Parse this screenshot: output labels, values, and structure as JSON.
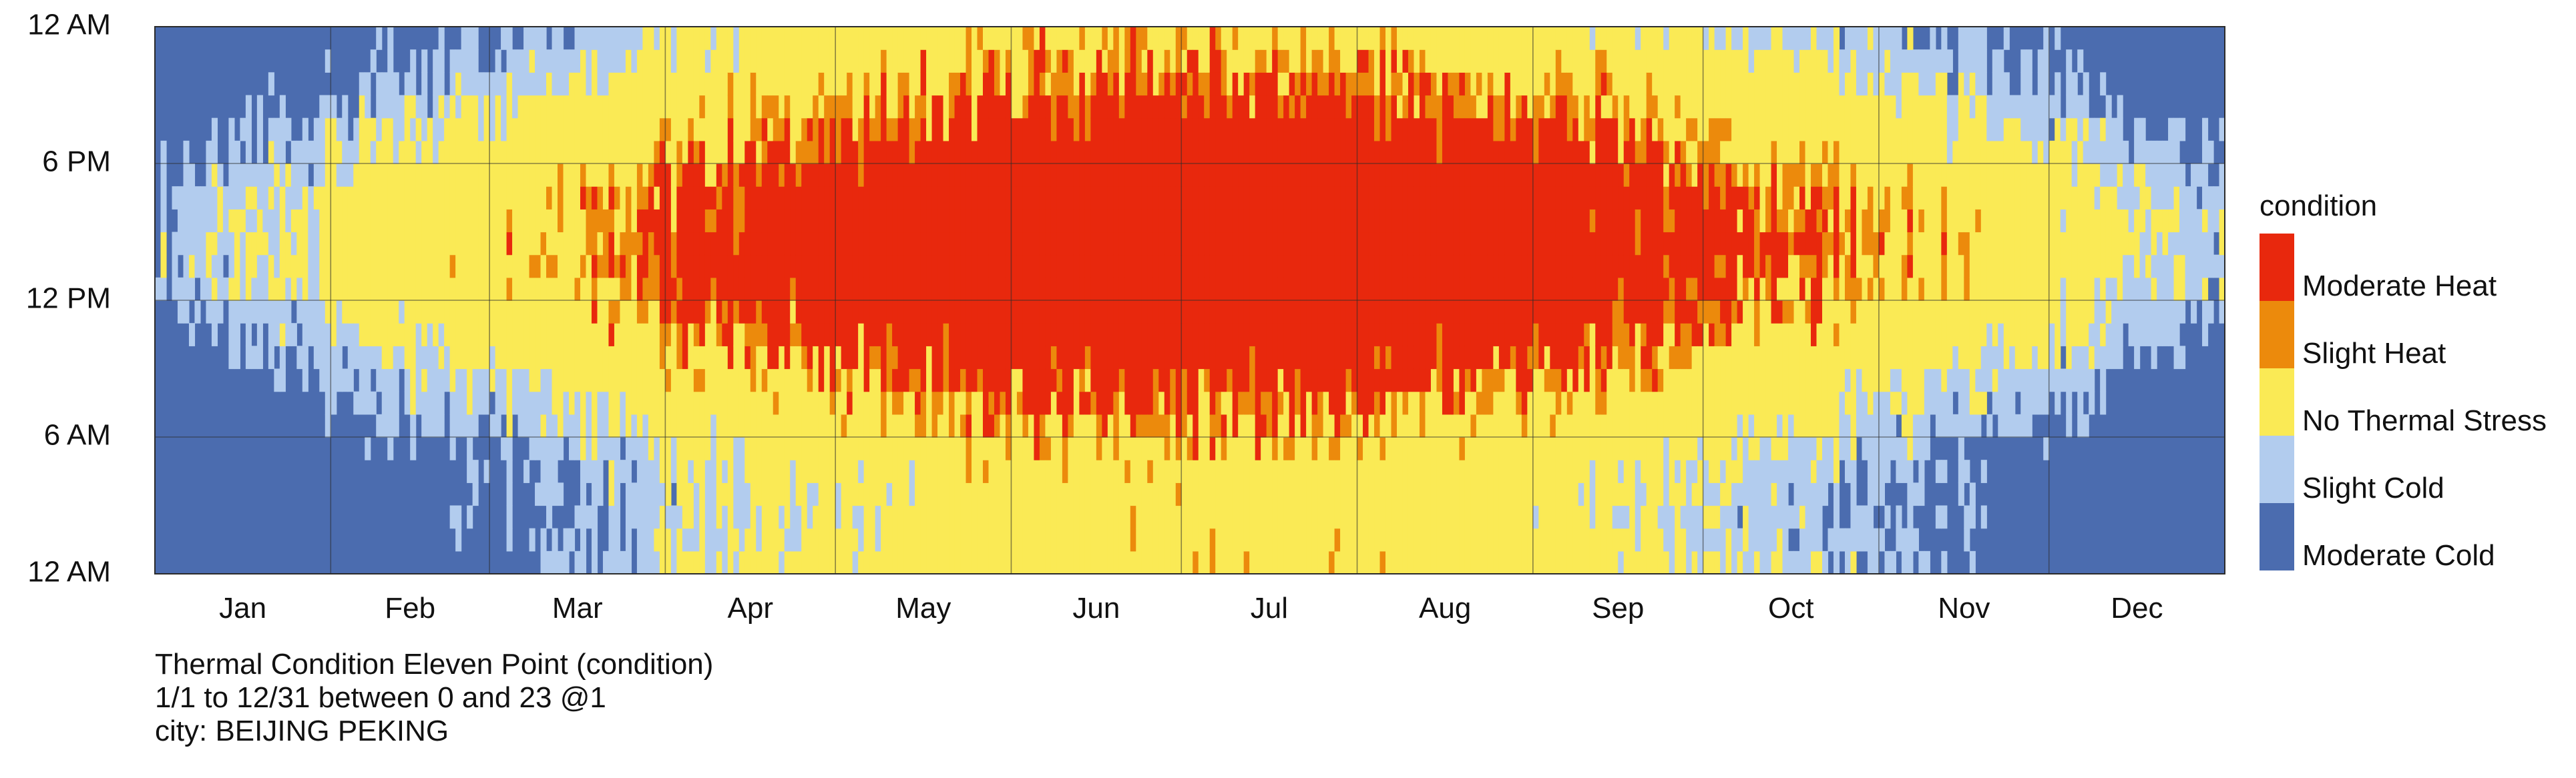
{
  "chart_data": {
    "type": "heatmap",
    "y_axis": {
      "tick_labels": [
        "12 AM",
        "6 PM",
        "12 PM",
        "6 AM",
        "12 AM"
      ],
      "hour_range": [
        0,
        23
      ]
    },
    "x_axis": {
      "tick_labels": [
        "Jan",
        "Feb",
        "Mar",
        "Apr",
        "May",
        "Jun",
        "Jul",
        "Aug",
        "Sep",
        "Oct",
        "Nov",
        "Dec"
      ],
      "day_range": [
        1,
        365
      ]
    },
    "grid": true,
    "legend": {
      "title": "condition",
      "placement": "right",
      "entries": [
        {
          "label": "Moderate Heat",
          "color": "#E8280D"
        },
        {
          "label": "Slight Heat",
          "color": "#EC8A0C"
        },
        {
          "label": "No Thermal Stress",
          "color": "#FAEA55"
        },
        {
          "label": "Slight Cold",
          "color": "#B2CCEE"
        },
        {
          "label": "Moderate Cold",
          "color": "#4B6CAF"
        }
      ]
    },
    "caption": [
      "Thermal Condition Eleven Point (condition)",
      "1/1 to 12/31 between 0 and 23 @1",
      "city: BEIJING PEKING"
    ],
    "monthly_pattern": [
      {
        "month": "Jan",
        "night": "Moderate Cold",
        "midday": "Slight Cold / No Thermal Stress"
      },
      {
        "month": "Feb",
        "night": "Moderate Cold",
        "midday": "Slight Cold / No Thermal Stress"
      },
      {
        "month": "Mar",
        "night": "Moderate Cold",
        "midday": "No Thermal Stress"
      },
      {
        "month": "Apr",
        "night": "Slight Cold",
        "midday": "No Thermal Stress / Moderate Heat"
      },
      {
        "month": "May",
        "night": "No Thermal Stress",
        "midday": "Moderate Heat"
      },
      {
        "month": "Jun",
        "night": "No Thermal Stress",
        "midday": "Moderate Heat"
      },
      {
        "month": "Jul",
        "night": "No Thermal Stress / Moderate Heat",
        "midday": "Moderate Heat"
      },
      {
        "month": "Aug",
        "night": "No Thermal Stress",
        "midday": "Moderate Heat"
      },
      {
        "month": "Sep",
        "night": "No Thermal Stress",
        "midday": "Moderate Heat"
      },
      {
        "month": "Oct",
        "night": "Slight Cold",
        "midday": "No Thermal Stress"
      },
      {
        "month": "Nov",
        "night": "Moderate Cold",
        "midday": "Slight Cold / No Thermal Stress"
      },
      {
        "month": "Dec",
        "night": "Moderate Cold",
        "midday": "Slight Cold / No Thermal Stress"
      }
    ]
  }
}
